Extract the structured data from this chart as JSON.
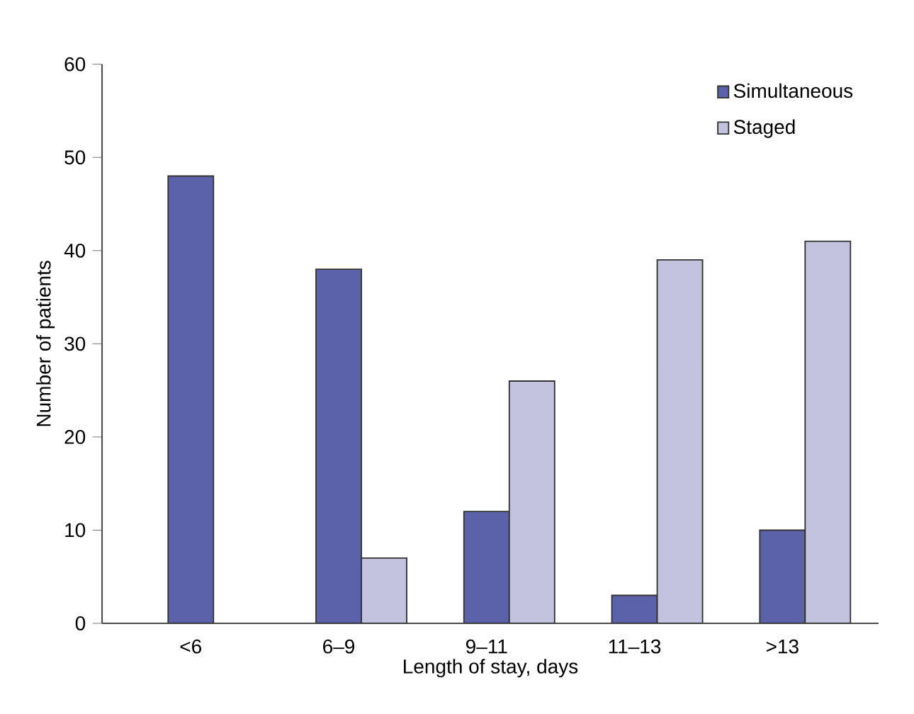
{
  "chart_data": {
    "type": "bar",
    "xlabel": "Length of stay, days",
    "ylabel": "Number of patients",
    "categories": [
      "<6",
      "6–9",
      "9–11",
      "11–13",
      ">13"
    ],
    "series": [
      {
        "name": "Simultaneous",
        "color": "#5c62aa",
        "values": [
          48,
          38,
          12,
          3,
          10
        ]
      },
      {
        "name": "Staged",
        "color": "#c3c3e0",
        "values": [
          null,
          7,
          26,
          39,
          41
        ]
      }
    ],
    "ylim": [
      0,
      60
    ],
    "yticks": [
      0,
      10,
      20,
      30,
      40,
      50,
      60
    ],
    "grid": false,
    "legend": "top right"
  }
}
